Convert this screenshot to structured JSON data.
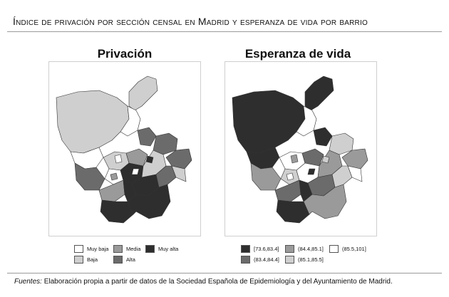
{
  "header": {
    "title": "Índice de privación por sección censal en Madrid y esperanza de vida por barrio"
  },
  "maps": {
    "left": {
      "title": "Privación"
    },
    "right": {
      "title": "Esperanza de vida"
    }
  },
  "legends": {
    "left": [
      {
        "label": "Muy baja",
        "color": "#ffffff"
      },
      {
        "label": "Baja",
        "color": "#cfcfcf"
      },
      {
        "label": "Media",
        "color": "#9a9a9a"
      },
      {
        "label": "Alta",
        "color": "#6b6b6b"
      },
      {
        "label": "Muy alta",
        "color": "#2e2e2e"
      }
    ],
    "right": [
      {
        "label": "[73.6,83.4]",
        "color": "#2e2e2e"
      },
      {
        "label": "(83.4,84.4]",
        "color": "#6b6b6b"
      },
      {
        "label": "(84.4,85.1]",
        "color": "#9a9a9a"
      },
      {
        "label": "(85.1,85.5]",
        "color": "#cfcfcf"
      },
      {
        "label": "(85.5,101]",
        "color": "#ffffff"
      }
    ]
  },
  "footer": {
    "source_label": "Fuentes:",
    "source_text": " Elaboración propia a partir de datos de la Sociedad Española de Epidemiología y del Ayuntamiento de Madrid."
  }
}
